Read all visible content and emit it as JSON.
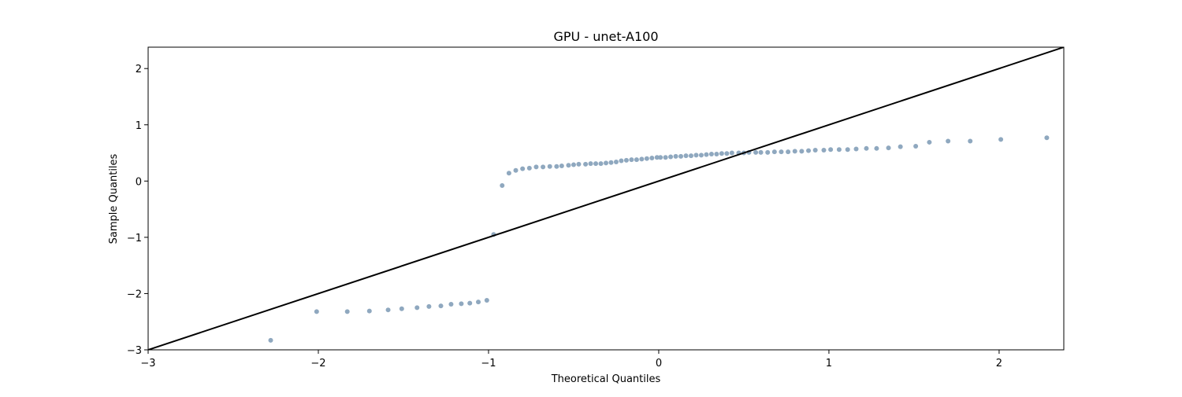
{
  "chart_data": {
    "type": "scatter",
    "title": "GPU - unet-A100",
    "xlabel": "Theoretical Quantiles",
    "ylabel": "Sample Quantiles",
    "xlim": [
      -3.0,
      2.38
    ],
    "ylim": [
      -3.0,
      2.38
    ],
    "x_ticks": [
      "-3",
      "-2",
      "-1",
      "0",
      "1",
      "2"
    ],
    "y_ticks": [
      "-3",
      "-2",
      "-1",
      "0",
      "1",
      "2"
    ],
    "grid": false,
    "reference_line": {
      "slope": 1,
      "intercept": 0,
      "color": "#000000"
    },
    "marker_color": "#8fa8bf",
    "points": {
      "x": [
        -2.28,
        -2.01,
        -1.83,
        -1.7,
        -1.59,
        -1.51,
        -1.42,
        -1.35,
        -1.28,
        -1.22,
        -1.16,
        -1.11,
        -1.06,
        -1.01,
        -0.97,
        -0.92,
        -0.88,
        -0.84,
        -0.8,
        -0.76,
        -0.72,
        -0.68,
        -0.64,
        -0.6,
        -0.57,
        -0.53,
        -0.5,
        -0.47,
        -0.43,
        -0.4,
        -0.37,
        -0.34,
        -0.31,
        -0.28,
        -0.25,
        -0.22,
        -0.19,
        -0.16,
        -0.13,
        -0.1,
        -0.07,
        -0.04,
        -0.01,
        0.01,
        0.04,
        0.07,
        0.1,
        0.13,
        0.16,
        0.19,
        0.22,
        0.25,
        0.28,
        0.31,
        0.34,
        0.37,
        0.4,
        0.43,
        0.47,
        0.5,
        0.53,
        0.57,
        0.6,
        0.64,
        0.68,
        0.72,
        0.76,
        0.8,
        0.84,
        0.88,
        0.92,
        0.97,
        1.01,
        1.06,
        1.11,
        1.16,
        1.22,
        1.28,
        1.35,
        1.42,
        1.51,
        1.59,
        1.7,
        1.83,
        2.01,
        2.28
      ],
      "y": [
        -2.83,
        -2.32,
        -2.32,
        -2.31,
        -2.29,
        -2.27,
        -2.25,
        -2.23,
        -2.22,
        -2.19,
        -2.18,
        -2.17,
        -2.15,
        -2.12,
        -0.95,
        -0.08,
        0.14,
        0.19,
        0.22,
        0.23,
        0.25,
        0.25,
        0.26,
        0.26,
        0.27,
        0.28,
        0.29,
        0.3,
        0.3,
        0.31,
        0.31,
        0.31,
        0.32,
        0.33,
        0.34,
        0.36,
        0.37,
        0.38,
        0.38,
        0.39,
        0.4,
        0.41,
        0.42,
        0.42,
        0.42,
        0.43,
        0.44,
        0.44,
        0.45,
        0.45,
        0.46,
        0.46,
        0.47,
        0.48,
        0.48,
        0.49,
        0.49,
        0.5,
        0.5,
        0.5,
        0.51,
        0.51,
        0.51,
        0.51,
        0.52,
        0.52,
        0.52,
        0.53,
        0.53,
        0.54,
        0.55,
        0.55,
        0.56,
        0.56,
        0.56,
        0.57,
        0.58,
        0.58,
        0.59,
        0.61,
        0.62,
        0.69,
        0.71,
        0.71,
        0.74,
        0.77
      ]
    }
  }
}
